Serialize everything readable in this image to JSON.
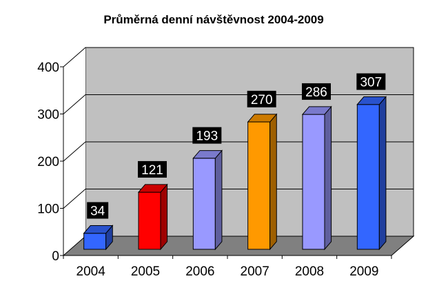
{
  "chart_data": {
    "type": "bar",
    "title": "Průměrná denní návštěvnost 2004-2009",
    "categories": [
      "2004",
      "2005",
      "2006",
      "2007",
      "2008",
      "2009"
    ],
    "values": [
      34,
      121,
      193,
      270,
      286,
      307
    ],
    "data_labels": [
      "34",
      "121",
      "193",
      "270",
      "286",
      "307"
    ],
    "colors": [
      "#3366ff",
      "#ff0000",
      "#9999ff",
      "#ff9900",
      "#9999ff",
      "#3366ff"
    ],
    "ylim": [
      0,
      400
    ],
    "yticks": [
      0,
      100,
      200,
      300,
      400
    ],
    "ytick_labels": [
      "0",
      "100",
      "200",
      "300",
      "400"
    ],
    "grid": true,
    "legend": "none",
    "three_d": true,
    "wall_color": "#c0c0c0",
    "floor_color": "#808080"
  }
}
